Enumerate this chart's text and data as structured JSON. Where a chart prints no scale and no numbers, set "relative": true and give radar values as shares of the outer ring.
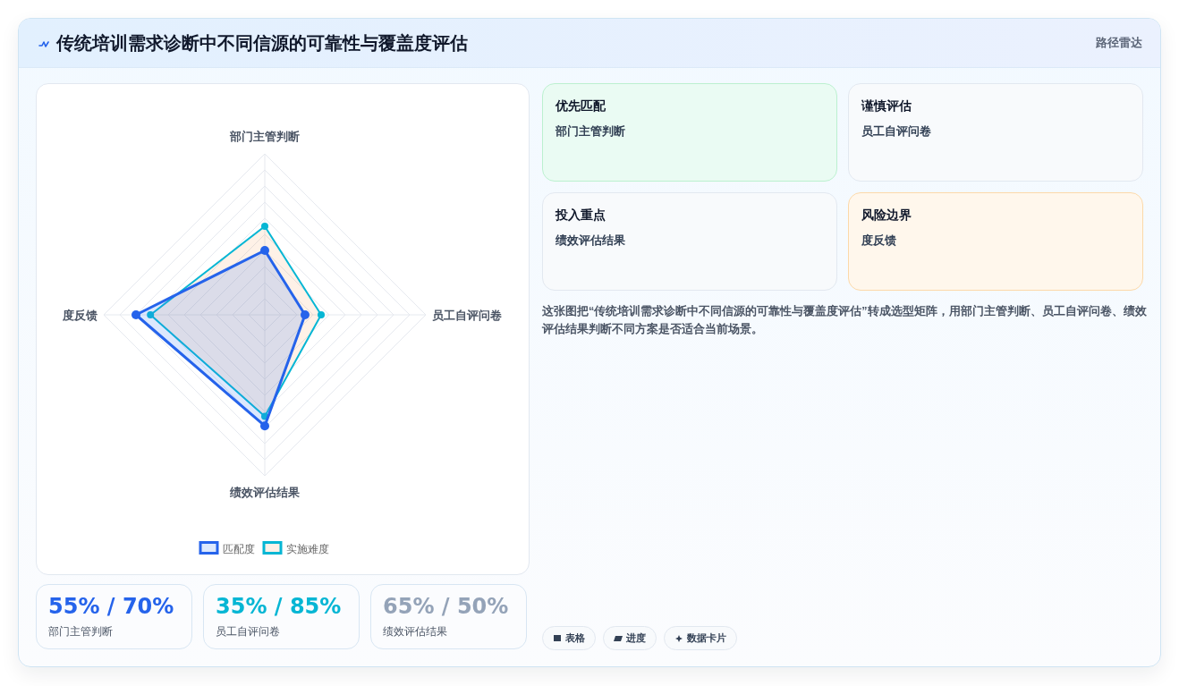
{
  "chart_data": [
    {
      "type": "other",
      "title": "传统培训需求诊断中不同信源的可靠性与覆盖度评估",
      "subtitle": "路径雷达"
    },
    {
      "type": "radar",
      "categories": [
        "部门主管判断",
        "员工自评问卷",
        "绩效评估结果",
        "度反馈"
      ],
      "relative": true,
      "grid": true,
      "legend": "bottom",
      "marker": "circle",
      "series": [
        {
          "name": "匹配度",
          "color": "#2563eb",
          "values": [
            0.4,
            0.25,
            0.69,
            0.8
          ]
        },
        {
          "name": "实施难度",
          "color": "#06b6d4",
          "values": [
            0.55,
            0.35,
            0.63,
            0.71
          ]
        }
      ]
    },
    {
      "type": "other",
      "annotations": [
        "优先匹配",
        "部门主管判断",
        "谨慎评估",
        "员工自评问卷",
        "投入重点",
        "绩效评估结果",
        "风险边界",
        "度反馈",
        "这张图把“传统培训需求诊断中不同信源的可靠性与覆盖度评估”转成选型矩阵，用部门主管判断、员工自评问卷、绩效评估结果判断不同方案是否适合当前场景。",
        "表格",
        "进度",
        "数据卡片"
      ]
    },
    {
      "type": "other",
      "annotations": [
        "55% / 70%",
        "部门主管判断",
        "35% / 85%",
        "员工自评问卷",
        "65% / 50%",
        "绩效评估结果"
      ]
    }
  ]
}
